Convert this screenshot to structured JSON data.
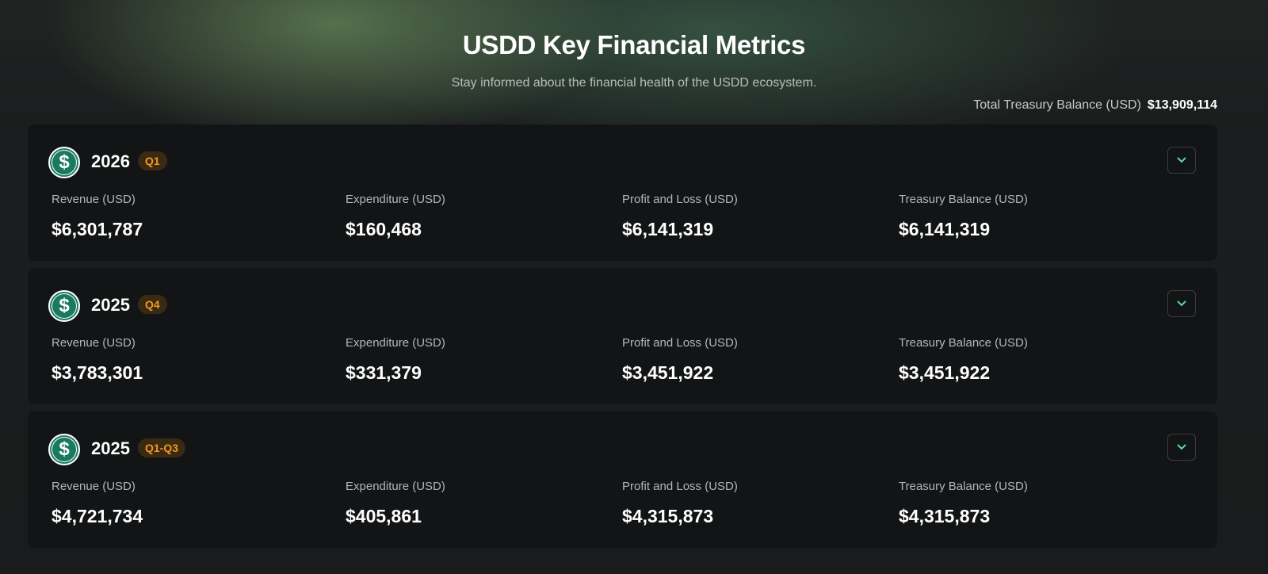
{
  "header": {
    "title": "USDD Key Financial Metrics",
    "subtitle": "Stay informed about the financial health of the USDD ecosystem.",
    "total_label": "Total Treasury Balance (USD)",
    "total_value": "$13,909,114"
  },
  "labels": {
    "revenue": "Revenue (USD)",
    "expenditure": "Expenditure (USD)",
    "pnl": "Profit and Loss (USD)",
    "treasury": "Treasury Balance (USD)"
  },
  "logo_text": "$",
  "cards": [
    {
      "year": "2026",
      "period": "Q1",
      "revenue": "$6,301,787",
      "expenditure": "$160,468",
      "pnl": "$6,141,319",
      "treasury": "$6,141,319"
    },
    {
      "year": "2025",
      "period": "Q4",
      "revenue": "$3,783,301",
      "expenditure": "$331,379",
      "pnl": "$3,451,922",
      "treasury": "$3,451,922"
    },
    {
      "year": "2025",
      "period": "Q1-Q3",
      "revenue": "$4,721,734",
      "expenditure": "$405,861",
      "pnl": "$4,315,873",
      "treasury": "$4,315,873"
    }
  ]
}
